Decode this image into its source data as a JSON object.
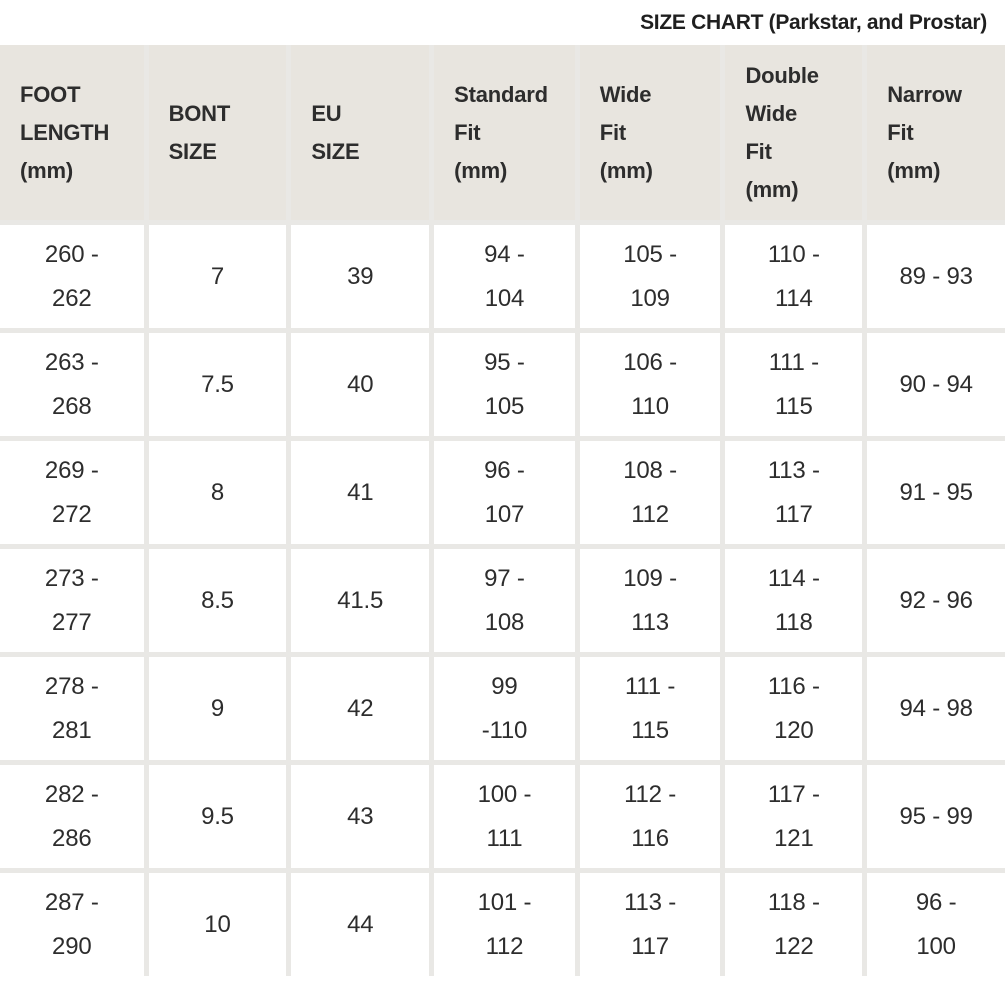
{
  "title": "SIZE CHART (Parkstar, and Prostar)",
  "colors": {
    "page_background": "#ffffff",
    "header_background": "#e8e5df",
    "grid_gap": "#e9e8e5",
    "cell_background": "#ffffff",
    "text": "#2d2d2d",
    "title_text": "#1f1f1f"
  },
  "table": {
    "columns": [
      {
        "id": "foot-length",
        "label": "FOOT\nLENGTH\n(mm)"
      },
      {
        "id": "bont-size",
        "label": "BONT\nSIZE"
      },
      {
        "id": "eu-size",
        "label": "EU\nSIZE"
      },
      {
        "id": "standard-fit",
        "label": "Standard\nFit\n(mm)"
      },
      {
        "id": "wide-fit",
        "label": "Wide\nFit\n(mm)"
      },
      {
        "id": "double-wide-fit",
        "label": "Double\nWide\nFit\n(mm)"
      },
      {
        "id": "narrow-fit",
        "label": "Narrow\nFit\n(mm)"
      }
    ],
    "rows": [
      [
        "260 -\n262",
        "7",
        "39",
        "94 -\n104",
        "105 -\n109",
        "110 -\n114",
        "89 - 93"
      ],
      [
        "263 -\n268",
        "7.5",
        "40",
        "95 -\n105",
        "106 -\n110",
        "111 -\n115",
        "90 - 94"
      ],
      [
        "269 -\n272",
        "8",
        "41",
        "96 -\n107",
        "108 -\n112",
        "113 -\n117",
        "91 - 95"
      ],
      [
        "273 -\n277",
        "8.5",
        "41.5",
        "97 -\n108",
        "109 -\n113",
        "114 -\n118",
        "92 - 96"
      ],
      [
        "278 -\n281",
        "9",
        "42",
        "99\n-110",
        "111 -\n115",
        "116 -\n120",
        "94 - 98"
      ],
      [
        "282 -\n286",
        "9.5",
        "43",
        "100 -\n111",
        "112 -\n116",
        "117 -\n121",
        "95 - 99"
      ],
      [
        "287 -\n290",
        "10",
        "44",
        "101 -\n112",
        "113 -\n117",
        "118 -\n122",
        "96 -\n100"
      ]
    ]
  }
}
